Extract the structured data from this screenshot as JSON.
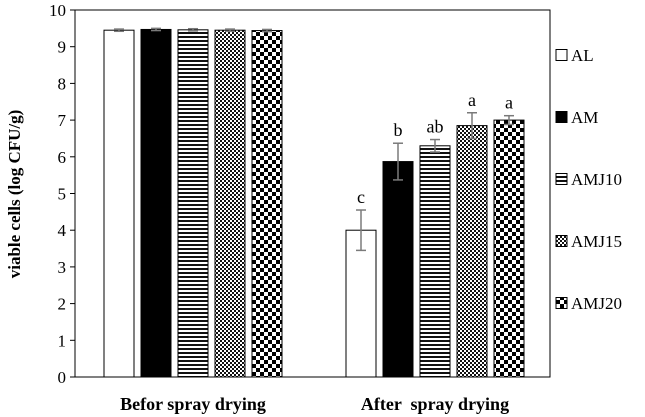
{
  "chart_data": {
    "type": "bar",
    "categories": [
      "Befor spray drying",
      "After  spray drying"
    ],
    "ylabel": "viable cells (log CFU/g)",
    "ylim": [
      0,
      10
    ],
    "yticks": [
      0,
      1,
      2,
      3,
      4,
      5,
      6,
      7,
      8,
      9,
      10
    ],
    "grid": false,
    "legend_position": "right",
    "series": [
      {
        "name": "AL",
        "pattern": "white",
        "values": [
          9.45,
          4.0
        ],
        "errors": [
          0.03,
          0.55
        ],
        "significance": [
          "",
          "c"
        ]
      },
      {
        "name": "AM",
        "pattern": "black",
        "values": [
          9.47,
          5.87
        ],
        "errors": [
          0.03,
          0.5
        ],
        "significance": [
          "",
          "b"
        ]
      },
      {
        "name": "AMJ10",
        "pattern": "horizontal-stripes",
        "values": [
          9.46,
          6.3
        ],
        "errors": [
          0.03,
          0.17
        ],
        "significance": [
          "",
          "ab"
        ]
      },
      {
        "name": "AMJ15",
        "pattern": "fine-checker",
        "values": [
          9.45,
          6.85
        ],
        "errors": [
          0.03,
          0.35
        ],
        "significance": [
          "",
          "a"
        ]
      },
      {
        "name": "AMJ20",
        "pattern": "coarse-checker",
        "values": [
          9.44,
          7.0
        ],
        "errors": [
          0.03,
          0.12
        ],
        "significance": [
          "",
          "a"
        ]
      }
    ]
  }
}
